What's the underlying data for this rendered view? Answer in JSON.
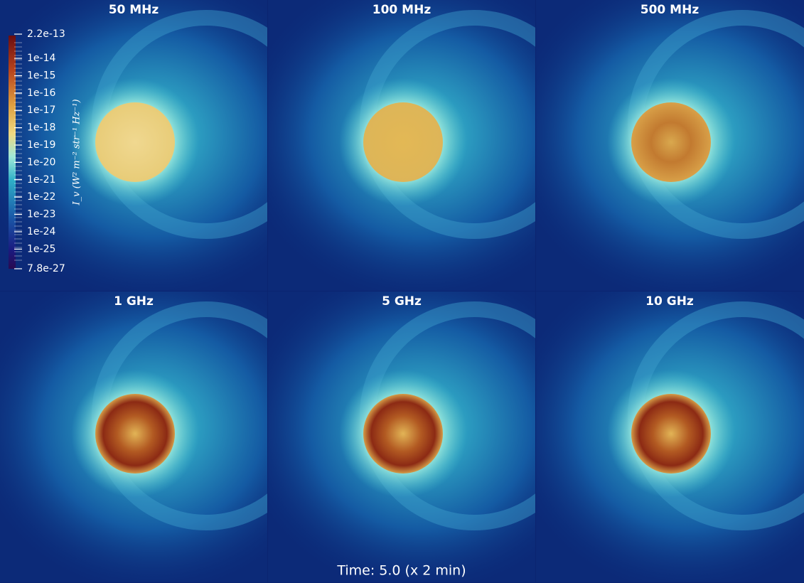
{
  "panels": [
    {
      "title": "50 MHz"
    },
    {
      "title": "100 MHz"
    },
    {
      "title": "500 MHz"
    },
    {
      "title": "1 GHz"
    },
    {
      "title": "5 GHz"
    },
    {
      "title": "10 GHz"
    }
  ],
  "colorbar": {
    "title": "I_v (W² m⁻² str⁻¹ Hz⁻¹)",
    "labels": [
      "2.2e-13",
      "1e-14",
      "1e-15",
      "1e-16",
      "1e-17",
      "1e-18",
      "1e-19",
      "1e-20",
      "1e-21",
      "1e-22",
      "1e-23",
      "1e-24",
      "1e-25",
      "7.8e-27"
    ]
  },
  "time_label": "Time:  5.0 (x 2 min)"
}
